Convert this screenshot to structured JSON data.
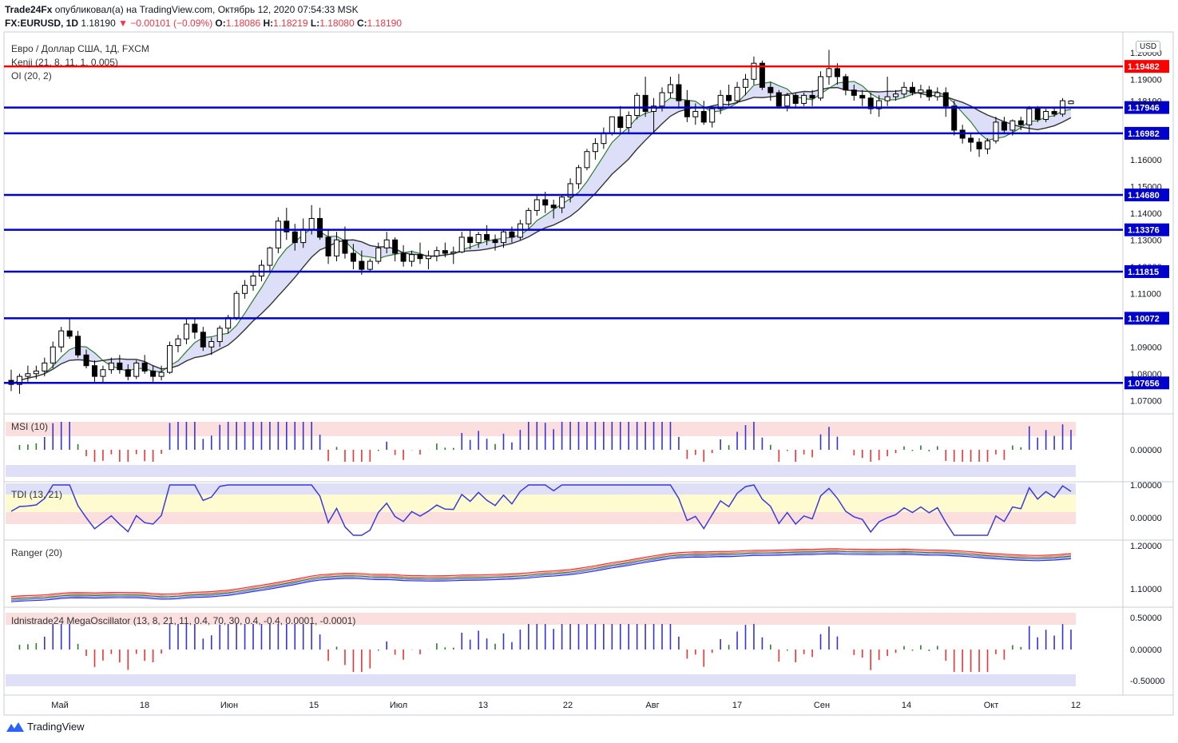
{
  "header": {
    "publisher": "Trade24Fx",
    "published_text": "опубликовал(а) на TradingView.com, Октябрь 12, 2020 07:54:33 MSK",
    "symbol": "FX:EURUSD, 1D",
    "last": "1.18190",
    "change": "−0.00101 (−0.09%)",
    "o_label": "O:",
    "o": "1.18086",
    "h_label": "H:",
    "h": "1.18219",
    "l_label": "L:",
    "l": "1.18080",
    "c_label": "C:",
    "c": "1.18190"
  },
  "legend": {
    "title": "Евро / Доллар США, 1Д, FXCM",
    "kenji": "Kenji (21, 8, 11, 1, 0.005)",
    "oi": "OI (20, 2)"
  },
  "pane_labels": {
    "msi": "MSI (10)",
    "tdi": "TDI (13, 21)",
    "ranger": "Ranger (20)",
    "mega": "Idnistrade24 MegaOscillator (13, 8, 21, 11, 0.4, 70, 30, 0.4, -0.4, 0.0001, -0.0001)"
  },
  "currency_badge": "USD",
  "footer": {
    "brand": "TradingView"
  },
  "colors": {
    "up": "#ffffff",
    "down": "#000000",
    "level": "#0000cc",
    "resistance": "#ff0000",
    "signal_buy": "#5555cc",
    "signal_sell": "#ff4444"
  },
  "chart_data": {
    "type": "candlestick",
    "x_tick_labels": [
      "Май",
      "18",
      "Июн",
      "15",
      "Июл",
      "13",
      "22",
      "Авг",
      "17",
      "Сен",
      "14",
      "Окт",
      "12"
    ],
    "y_tick_labels": [
      "1.20000",
      "1.19000",
      "1.18000",
      "1.17000",
      "1.16000",
      "1.15000",
      "1.14000",
      "1.13000",
      "1.12000",
      "1.11000",
      "1.10000",
      "1.09000",
      "1.08000",
      "1.07000"
    ],
    "ylim": [
      1.065,
      1.2065
    ],
    "current_price": "1.18190",
    "horizontal_levels": [
      {
        "value": 1.19482,
        "label": "1.19482",
        "color": "#ff0000"
      },
      {
        "value": 1.17946,
        "label": "1.17946",
        "color": "#0000cc"
      },
      {
        "value": 1.16982,
        "label": "1.16982",
        "color": "#0000cc"
      },
      {
        "value": 1.1468,
        "label": "1.14680",
        "color": "#0000cc"
      },
      {
        "value": 1.13376,
        "label": "1.13376",
        "color": "#0000cc"
      },
      {
        "value": 1.11815,
        "label": "1.11815",
        "color": "#0000cc"
      },
      {
        "value": 1.10072,
        "label": "1.10072",
        "color": "#0000cc"
      },
      {
        "value": 1.07656,
        "label": "1.07656",
        "color": "#0000cc"
      }
    ],
    "candles": [
      [
        1.0775,
        1.0815,
        1.0735,
        1.076
      ],
      [
        1.076,
        1.08,
        1.0725,
        1.079
      ],
      [
        1.079,
        1.083,
        1.077,
        1.08
      ],
      [
        1.08,
        1.083,
        1.078,
        1.081
      ],
      [
        1.081,
        1.086,
        1.079,
        1.084
      ],
      [
        1.084,
        1.092,
        1.082,
        1.09
      ],
      [
        1.09,
        1.0975,
        1.088,
        1.096
      ],
      [
        1.096,
        1.101,
        1.093,
        1.094
      ],
      [
        1.094,
        1.096,
        1.086,
        1.087
      ],
      [
        1.087,
        1.089,
        1.082,
        1.083
      ],
      [
        1.083,
        1.085,
        1.077,
        1.079
      ],
      [
        1.079,
        1.083,
        1.0765,
        1.0815
      ],
      [
        1.0815,
        1.086,
        1.08,
        1.084
      ],
      [
        1.084,
        1.087,
        1.08,
        1.0815
      ],
      [
        1.0815,
        1.0835,
        1.0775,
        1.079
      ],
      [
        1.079,
        1.085,
        1.078,
        1.084
      ],
      [
        1.084,
        1.087,
        1.08,
        1.081
      ],
      [
        1.081,
        1.083,
        1.077,
        1.079
      ],
      [
        1.079,
        1.083,
        1.0775,
        1.0805
      ],
      [
        1.0805,
        1.092,
        1.08,
        1.0905
      ],
      [
        1.0905,
        1.0945,
        1.088,
        1.093
      ],
      [
        1.093,
        1.1005,
        1.091,
        1.0985
      ],
      [
        1.0985,
        1.1008,
        1.093,
        1.0955
      ],
      [
        1.0955,
        1.0975,
        1.0885,
        1.09
      ],
      [
        1.09,
        1.0935,
        1.087,
        1.092
      ],
      [
        1.092,
        1.098,
        1.09,
        1.097
      ],
      [
        1.097,
        1.102,
        1.095,
        1.101
      ],
      [
        1.101,
        1.111,
        1.1,
        1.11
      ],
      [
        1.11,
        1.115,
        1.108,
        1.113
      ],
      [
        1.113,
        1.118,
        1.111,
        1.1165
      ],
      [
        1.1165,
        1.1225,
        1.1145,
        1.1205
      ],
      [
        1.1205,
        1.1275,
        1.118,
        1.127
      ],
      [
        1.127,
        1.1385,
        1.125,
        1.137
      ],
      [
        1.137,
        1.142,
        1.13,
        1.133
      ],
      [
        1.133,
        1.136,
        1.126,
        1.129
      ],
      [
        1.129,
        1.138,
        1.127,
        1.134
      ],
      [
        1.134,
        1.143,
        1.132,
        1.138
      ],
      [
        1.138,
        1.142,
        1.13,
        1.131
      ],
      [
        1.131,
        1.134,
        1.121,
        1.124
      ],
      [
        1.124,
        1.133,
        1.122,
        1.13
      ],
      [
        1.13,
        1.135,
        1.123,
        1.125
      ],
      [
        1.125,
        1.1285,
        1.119,
        1.122
      ],
      [
        1.122,
        1.126,
        1.117,
        1.119
      ],
      [
        1.119,
        1.123,
        1.118,
        1.122
      ],
      [
        1.122,
        1.129,
        1.121,
        1.127
      ],
      [
        1.127,
        1.133,
        1.125,
        1.13
      ],
      [
        1.13,
        1.131,
        1.122,
        1.125
      ],
      [
        1.125,
        1.128,
        1.12,
        1.122
      ],
      [
        1.122,
        1.126,
        1.12,
        1.1245
      ],
      [
        1.1245,
        1.129,
        1.121,
        1.123
      ],
      [
        1.123,
        1.126,
        1.119,
        1.124
      ],
      [
        1.124,
        1.1275,
        1.122,
        1.126
      ],
      [
        1.126,
        1.129,
        1.1235,
        1.125
      ],
      [
        1.125,
        1.1275,
        1.121,
        1.1255
      ],
      [
        1.1255,
        1.133,
        1.125,
        1.131
      ],
      [
        1.131,
        1.134,
        1.1265,
        1.129
      ],
      [
        1.129,
        1.133,
        1.127,
        1.132
      ],
      [
        1.132,
        1.1355,
        1.128,
        1.13
      ],
      [
        1.13,
        1.132,
        1.126,
        1.129
      ],
      [
        1.129,
        1.134,
        1.127,
        1.133
      ],
      [
        1.133,
        1.135,
        1.129,
        1.131
      ],
      [
        1.131,
        1.1375,
        1.13,
        1.136
      ],
      [
        1.136,
        1.142,
        1.134,
        1.141
      ],
      [
        1.141,
        1.147,
        1.139,
        1.145
      ],
      [
        1.145,
        1.148,
        1.14,
        1.143
      ],
      [
        1.143,
        1.145,
        1.138,
        1.142
      ],
      [
        1.142,
        1.147,
        1.14,
        1.146
      ],
      [
        1.146,
        1.153,
        1.144,
        1.151
      ],
      [
        1.151,
        1.158,
        1.149,
        1.157
      ],
      [
        1.157,
        1.164,
        1.156,
        1.163
      ],
      [
        1.163,
        1.168,
        1.16,
        1.166
      ],
      [
        1.166,
        1.172,
        1.164,
        1.17
      ],
      [
        1.17,
        1.176,
        1.169,
        1.176
      ],
      [
        1.176,
        1.18,
        1.17,
        1.172
      ],
      [
        1.172,
        1.178,
        1.17,
        1.1765
      ],
      [
        1.1765,
        1.185,
        1.175,
        1.184
      ],
      [
        1.184,
        1.191,
        1.176,
        1.178
      ],
      [
        1.178,
        1.183,
        1.17,
        1.18
      ],
      [
        1.18,
        1.187,
        1.178,
        1.185
      ],
      [
        1.185,
        1.191,
        1.183,
        1.188
      ],
      [
        1.188,
        1.192,
        1.179,
        1.182
      ],
      [
        1.182,
        1.186,
        1.174,
        1.176
      ],
      [
        1.176,
        1.181,
        1.173,
        1.178
      ],
      [
        1.178,
        1.182,
        1.173,
        1.174
      ],
      [
        1.174,
        1.18,
        1.172,
        1.179
      ],
      [
        1.179,
        1.186,
        1.177,
        1.184
      ],
      [
        1.184,
        1.188,
        1.18,
        1.182
      ],
      [
        1.182,
        1.189,
        1.181,
        1.187
      ],
      [
        1.187,
        1.192,
        1.184,
        1.19
      ],
      [
        1.19,
        1.1985,
        1.188,
        1.196
      ],
      [
        1.196,
        1.197,
        1.186,
        1.187
      ],
      [
        1.187,
        1.189,
        1.182,
        1.185
      ],
      [
        1.185,
        1.186,
        1.179,
        1.18
      ],
      [
        1.18,
        1.185,
        1.178,
        1.184
      ],
      [
        1.184,
        1.185,
        1.179,
        1.181
      ],
      [
        1.181,
        1.185,
        1.18,
        1.184
      ],
      [
        1.184,
        1.186,
        1.18,
        1.183
      ],
      [
        1.183,
        1.193,
        1.182,
        1.191
      ],
      [
        1.191,
        1.201,
        1.188,
        1.194
      ],
      [
        1.194,
        1.196,
        1.188,
        1.191
      ],
      [
        1.191,
        1.192,
        1.184,
        1.186
      ],
      [
        1.186,
        1.188,
        1.182,
        1.184
      ],
      [
        1.184,
        1.186,
        1.18,
        1.183
      ],
      [
        1.183,
        1.185,
        1.177,
        1.179
      ],
      [
        1.179,
        1.184,
        1.176,
        1.182
      ],
      [
        1.182,
        1.191,
        1.18,
        1.1835
      ],
      [
        1.1835,
        1.186,
        1.182,
        1.1845
      ],
      [
        1.1845,
        1.189,
        1.183,
        1.187
      ],
      [
        1.187,
        1.189,
        1.184,
        1.185
      ],
      [
        1.185,
        1.188,
        1.183,
        1.186
      ],
      [
        1.186,
        1.1875,
        1.182,
        1.1835
      ],
      [
        1.1835,
        1.187,
        1.182,
        1.185
      ],
      [
        1.185,
        1.187,
        1.176,
        1.18
      ],
      [
        1.18,
        1.182,
        1.169,
        1.171
      ],
      [
        1.171,
        1.173,
        1.166,
        1.168
      ],
      [
        1.168,
        1.17,
        1.163,
        1.1665
      ],
      [
        1.1665,
        1.168,
        1.161,
        1.164
      ],
      [
        1.164,
        1.168,
        1.162,
        1.167
      ],
      [
        1.167,
        1.176,
        1.166,
        1.174
      ],
      [
        1.174,
        1.176,
        1.17,
        1.171
      ],
      [
        1.171,
        1.175,
        1.169,
        1.1745
      ],
      [
        1.1745,
        1.176,
        1.171,
        1.173
      ],
      [
        1.173,
        1.18,
        1.17,
        1.179
      ],
      [
        1.179,
        1.18,
        1.174,
        1.175
      ],
      [
        1.175,
        1.179,
        1.174,
        1.178
      ],
      [
        1.178,
        1.1795,
        1.176,
        1.177
      ],
      [
        1.177,
        1.183,
        1.176,
        1.182
      ],
      [
        1.1809,
        1.1822,
        1.1808,
        1.1819
      ]
    ]
  }
}
